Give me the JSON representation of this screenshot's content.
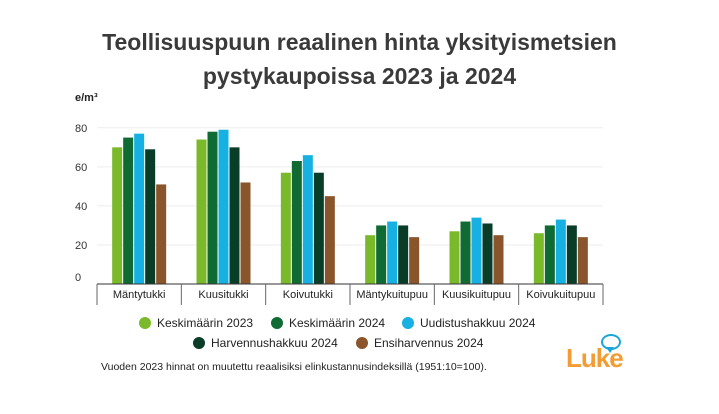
{
  "chart_data": {
    "type": "bar",
    "title": "Teollisuuspuun reaalinen hinta yksityismetsien pystykaupoissa 2023 ja 2024",
    "title_lines": [
      "Teollisuuspuun reaalinen hinta yksityismetsien",
      "pystykaupoissa 2023 ja 2024"
    ],
    "ylabel": "e/m³",
    "ylim": [
      0,
      84
    ],
    "yticks": [
      0,
      20,
      40,
      60,
      80
    ],
    "grid": true,
    "legend_position": "bottom",
    "categories": [
      "Mäntytukki",
      "Kuusitukki",
      "Koivutukki",
      "Mäntykuitupuu",
      "Kuusikuitupuu",
      "Koivukuitupuu"
    ],
    "series": [
      {
        "name": "Keskimäärin 2023",
        "color": "#7ab929",
        "values": [
          70,
          74,
          57,
          25,
          27,
          26
        ]
      },
      {
        "name": "Keskimäärin 2024",
        "color": "#0f6b33",
        "values": [
          75,
          78,
          63,
          30,
          32,
          30
        ]
      },
      {
        "name": "Uudistushakkuu 2024",
        "color": "#16b1e2",
        "values": [
          77,
          79,
          66,
          32,
          34,
          33
        ]
      },
      {
        "name": "Harvennushakkuu 2024",
        "color": "#0a3d28",
        "values": [
          69,
          70,
          57,
          30,
          31,
          30
        ]
      },
      {
        "name": "Ensiharvennus 2024",
        "color": "#8b552c",
        "values": [
          51,
          52,
          45,
          24,
          25,
          24
        ]
      }
    ],
    "footnote": "Vuoden 2023 hinnat on muutettu reaalisiksi elinkustannusindeksillä (1951:10=100)."
  },
  "logo": {
    "text": "Luke"
  }
}
